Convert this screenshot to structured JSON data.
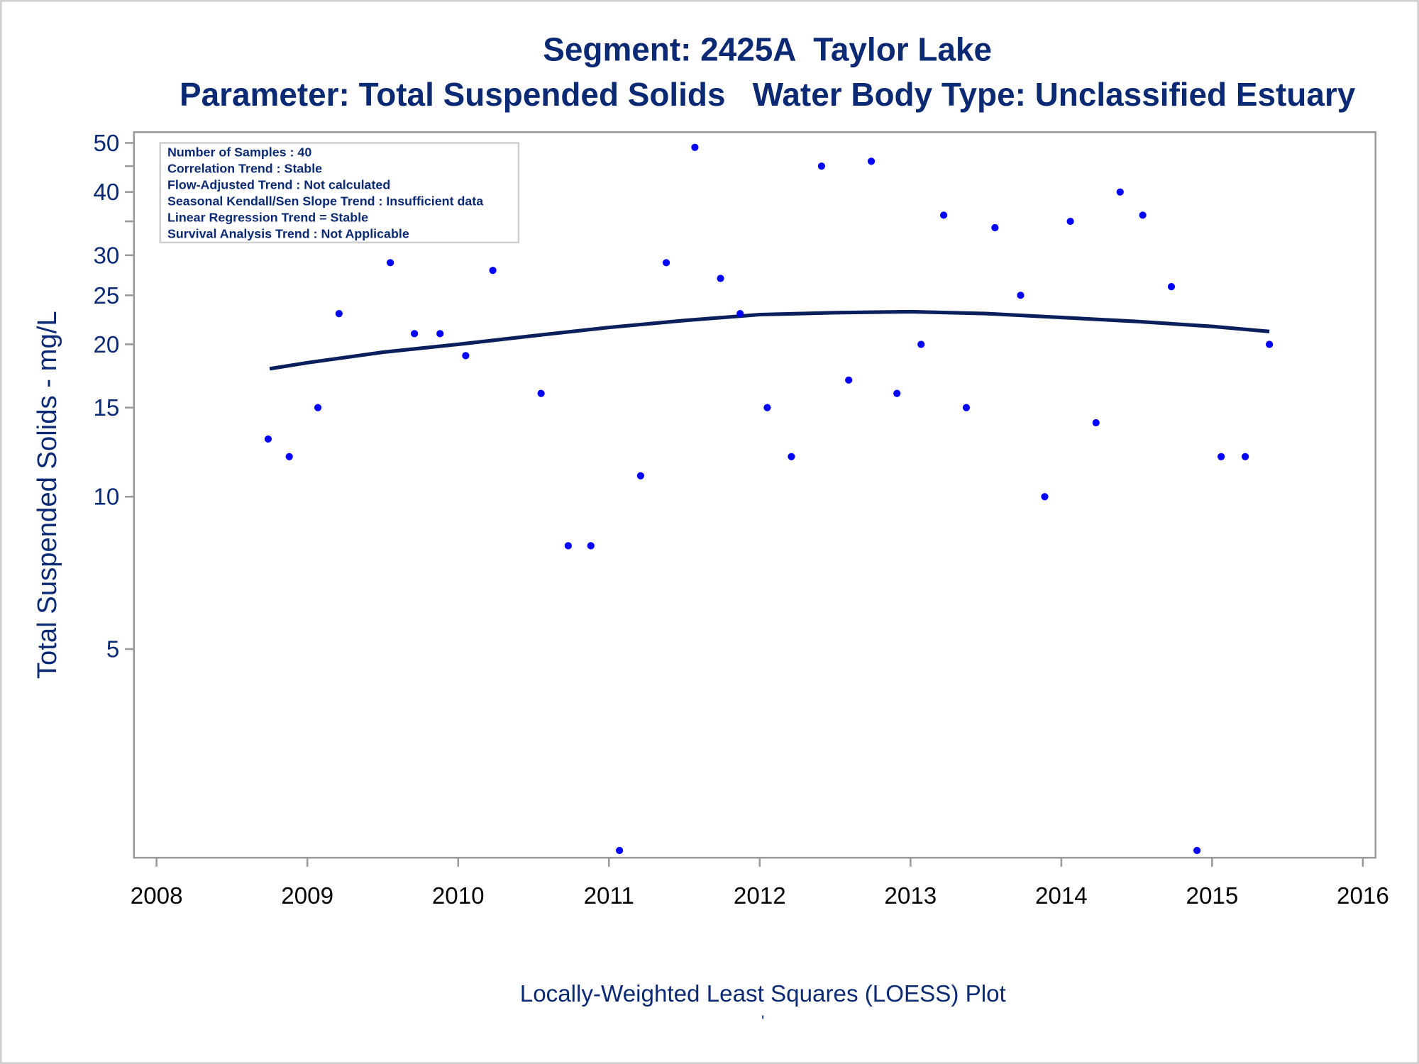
{
  "chart_data": {
    "type": "scatter",
    "title": "Segment: 2425A  Taylor Lake",
    "subtitle": "Parameter: Total Suspended Solids   Water Body Type: Unclassified Estuary",
    "xlabel": "",
    "ylabel": "Total Suspended Solids - mg/L",
    "footnote": "Locally-Weighted Least Squares (LOESS) Plot",
    "footnote_mark": "'",
    "yscale": "log",
    "xlim": [
      2008,
      2016
    ],
    "ylim": [
      1.93,
      52
    ],
    "x_ticks": [
      2008,
      2009,
      2010,
      2011,
      2012,
      2013,
      2014,
      2015,
      2016
    ],
    "y_ticks": [
      5,
      10,
      15,
      20,
      25,
      30,
      35,
      40,
      45,
      50
    ],
    "y_tick_labels": [
      "5",
      "10",
      "15",
      "20",
      "25",
      "30",
      "",
      "40",
      "",
      "50"
    ],
    "grid": false,
    "inset": {
      "lines": [
        "Number of Samples : 40",
        "Correlation Trend : Stable",
        "Flow-Adjusted Trend : Not calculated",
        "Seasonal Kendall/Sen Slope Trend : Insufficient data",
        "Linear Regression Trend = Stable",
        "Survival Analysis Trend : Not Applicable"
      ],
      "placement": "top-left"
    },
    "series": [
      {
        "name": "Samples",
        "type": "scatter",
        "color": "#0000ff",
        "x": [
          2008.74,
          2008.88,
          2009.07,
          2009.21,
          2009.38,
          2009.55,
          2009.71,
          2009.88,
          2010.05,
          2010.23,
          2010.55,
          2010.73,
          2010.88,
          2011.07,
          2011.21,
          2011.38,
          2011.57,
          2011.74,
          2011.87,
          2012.05,
          2012.21,
          2012.41,
          2012.59,
          2012.74,
          2012.91,
          2013.07,
          2013.22,
          2013.37,
          2013.56,
          2013.73,
          2013.89,
          2014.06,
          2014.23,
          2014.39,
          2014.54,
          2014.73,
          2014.9,
          2015.06,
          2015.22,
          2015.38
        ],
        "y": [
          13,
          12,
          15,
          23,
          34,
          29,
          21,
          21,
          19,
          28,
          16,
          8,
          8,
          2,
          11,
          29,
          49,
          27,
          23,
          15,
          12,
          45,
          17,
          46,
          16,
          20,
          36,
          15,
          34,
          25,
          10,
          35,
          14,
          40,
          36,
          26,
          2,
          12,
          12,
          20
        ]
      },
      {
        "name": "LOESS",
        "type": "line",
        "color": "#0a1f5c",
        "x": [
          2008.75,
          2009.0,
          2009.5,
          2010.0,
          2010.5,
          2011.0,
          2011.5,
          2012.0,
          2012.5,
          2013.0,
          2013.5,
          2014.0,
          2014.5,
          2015.0,
          2015.38
        ],
        "y": [
          17.9,
          18.4,
          19.3,
          20.0,
          20.8,
          21.6,
          22.3,
          22.9,
          23.1,
          23.2,
          23.0,
          22.6,
          22.2,
          21.7,
          21.2
        ]
      }
    ]
  }
}
